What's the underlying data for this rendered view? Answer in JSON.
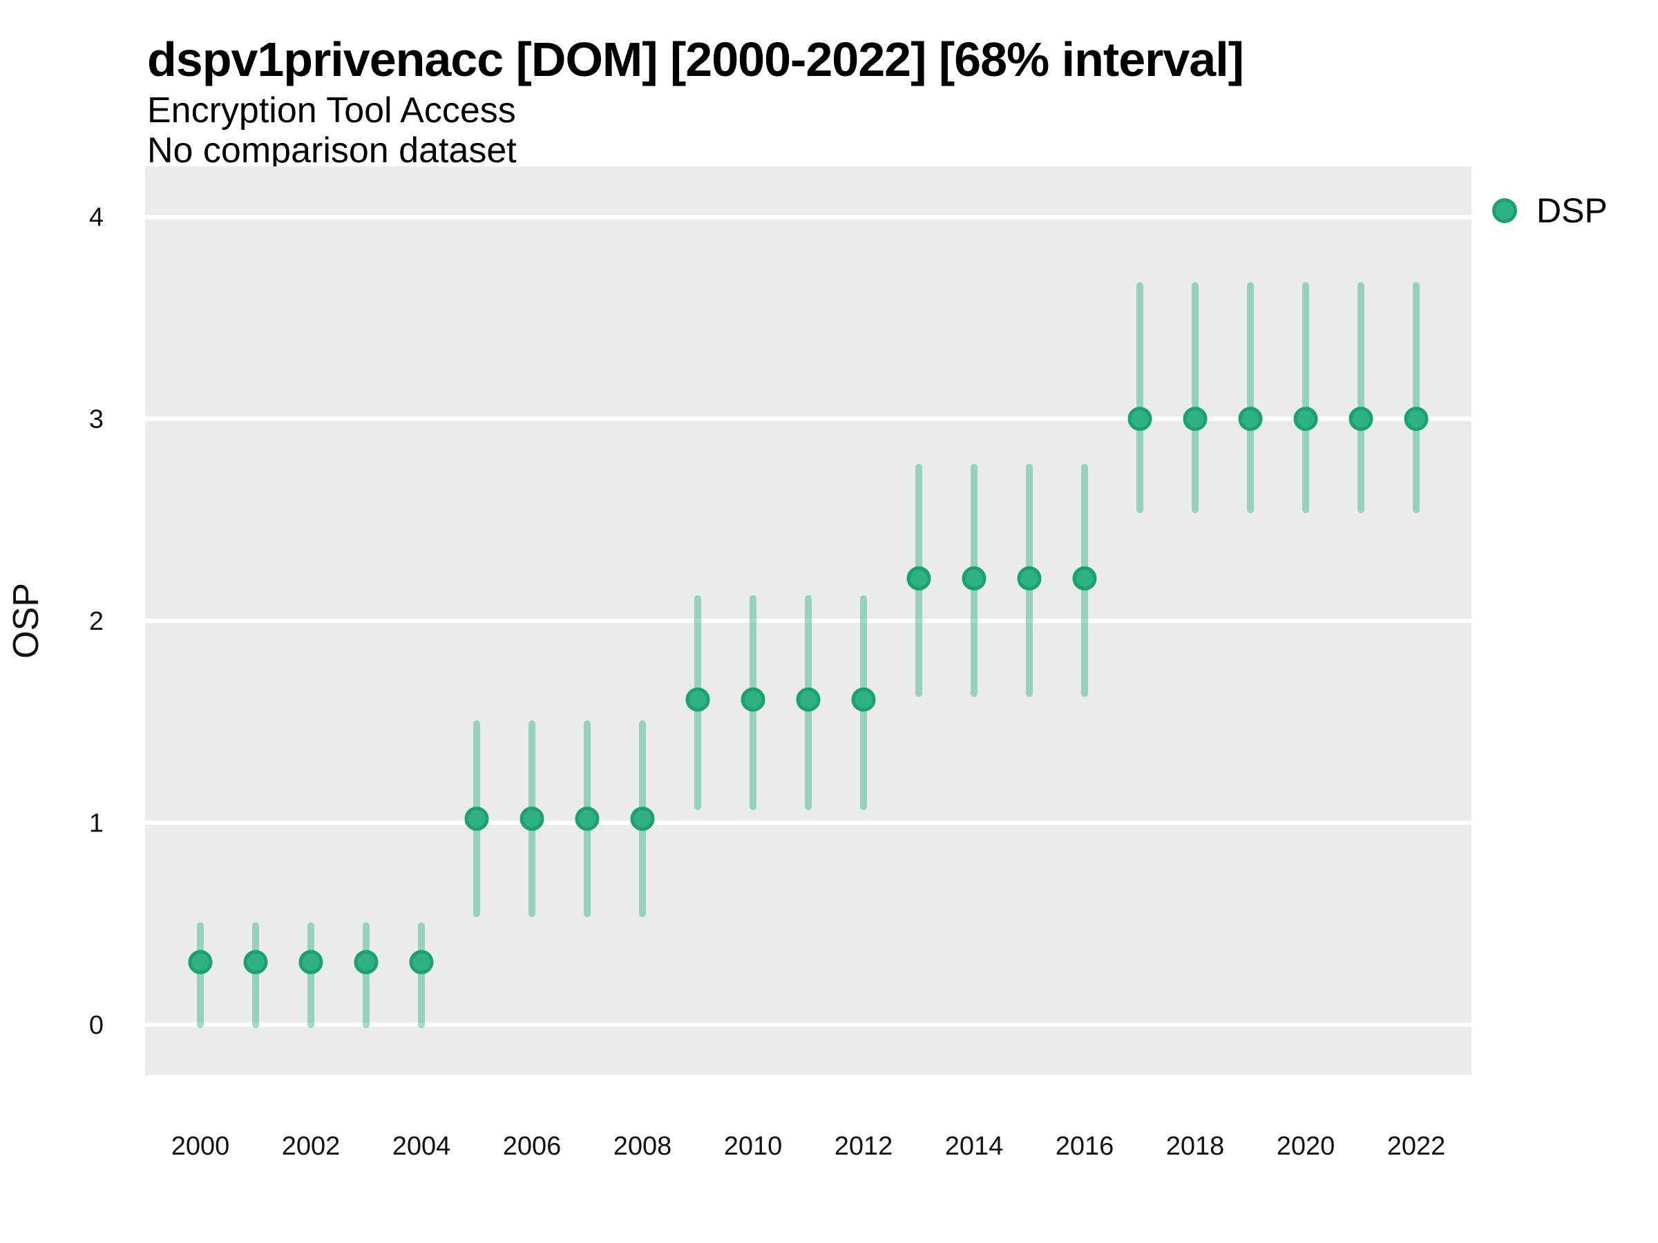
{
  "header": {
    "title": "dspv1privenacc [DOM] [2000-2022] [68% interval]",
    "subtitle": "Encryption Tool Access",
    "note": "No comparison dataset"
  },
  "legend": {
    "items": [
      {
        "label": "DSP",
        "fill": "#2fb183",
        "stroke": "#18a26d"
      }
    ]
  },
  "chart_data": {
    "type": "scatter",
    "title": "dspv1privenacc [DOM] [2000-2022] [68% interval]",
    "subtitle": "Encryption Tool Access",
    "note": "No comparison dataset",
    "xlabel": "",
    "ylabel": "OSP",
    "legend_position": "right",
    "grid": true,
    "xlim": [
      1999,
      2023
    ],
    "ylim": [
      -0.25,
      4.25
    ],
    "y_ticks": [
      0,
      1,
      2,
      3,
      4
    ],
    "x_tick_labels": [
      2000,
      2002,
      2004,
      2006,
      2008,
      2010,
      2012,
      2014,
      2016,
      2018,
      2020,
      2022
    ],
    "interval_label": "68% interval",
    "series": [
      {
        "name": "DSP",
        "points": [
          {
            "year": 2000,
            "value": 0.31,
            "lo": 0.0,
            "hi": 0.49
          },
          {
            "year": 2001,
            "value": 0.31,
            "lo": 0.0,
            "hi": 0.49
          },
          {
            "year": 2002,
            "value": 0.31,
            "lo": 0.0,
            "hi": 0.49
          },
          {
            "year": 2003,
            "value": 0.31,
            "lo": 0.0,
            "hi": 0.49
          },
          {
            "year": 2004,
            "value": 0.31,
            "lo": 0.0,
            "hi": 0.49
          },
          {
            "year": 2005,
            "value": 1.02,
            "lo": 0.55,
            "hi": 1.49
          },
          {
            "year": 2006,
            "value": 1.02,
            "lo": 0.55,
            "hi": 1.49
          },
          {
            "year": 2007,
            "value": 1.02,
            "lo": 0.55,
            "hi": 1.49
          },
          {
            "year": 2008,
            "value": 1.02,
            "lo": 0.55,
            "hi": 1.49
          },
          {
            "year": 2009,
            "value": 1.61,
            "lo": 1.08,
            "hi": 2.11
          },
          {
            "year": 2010,
            "value": 1.61,
            "lo": 1.08,
            "hi": 2.11
          },
          {
            "year": 2011,
            "value": 1.61,
            "lo": 1.08,
            "hi": 2.11
          },
          {
            "year": 2012,
            "value": 1.61,
            "lo": 1.08,
            "hi": 2.11
          },
          {
            "year": 2013,
            "value": 2.21,
            "lo": 1.64,
            "hi": 2.76
          },
          {
            "year": 2014,
            "value": 2.21,
            "lo": 1.64,
            "hi": 2.76
          },
          {
            "year": 2015,
            "value": 2.21,
            "lo": 1.64,
            "hi": 2.76
          },
          {
            "year": 2016,
            "value": 2.21,
            "lo": 1.64,
            "hi": 2.76
          },
          {
            "year": 2017,
            "value": 3.0,
            "lo": 2.55,
            "hi": 3.66
          },
          {
            "year": 2018,
            "value": 3.0,
            "lo": 2.55,
            "hi": 3.66
          },
          {
            "year": 2019,
            "value": 3.0,
            "lo": 2.55,
            "hi": 3.66
          },
          {
            "year": 2020,
            "value": 3.0,
            "lo": 2.55,
            "hi": 3.66
          },
          {
            "year": 2021,
            "value": 3.0,
            "lo": 2.55,
            "hi": 3.66
          },
          {
            "year": 2022,
            "value": 3.0,
            "lo": 2.55,
            "hi": 3.66
          }
        ]
      }
    ],
    "colors": {
      "panel_bg": "#ebebeb",
      "grid": "#ffffff",
      "point_fill": "#2fb183",
      "point_stroke": "#18a26d",
      "error_bar": "rgba(47,177,131,0.45)",
      "text": "#111111"
    }
  }
}
